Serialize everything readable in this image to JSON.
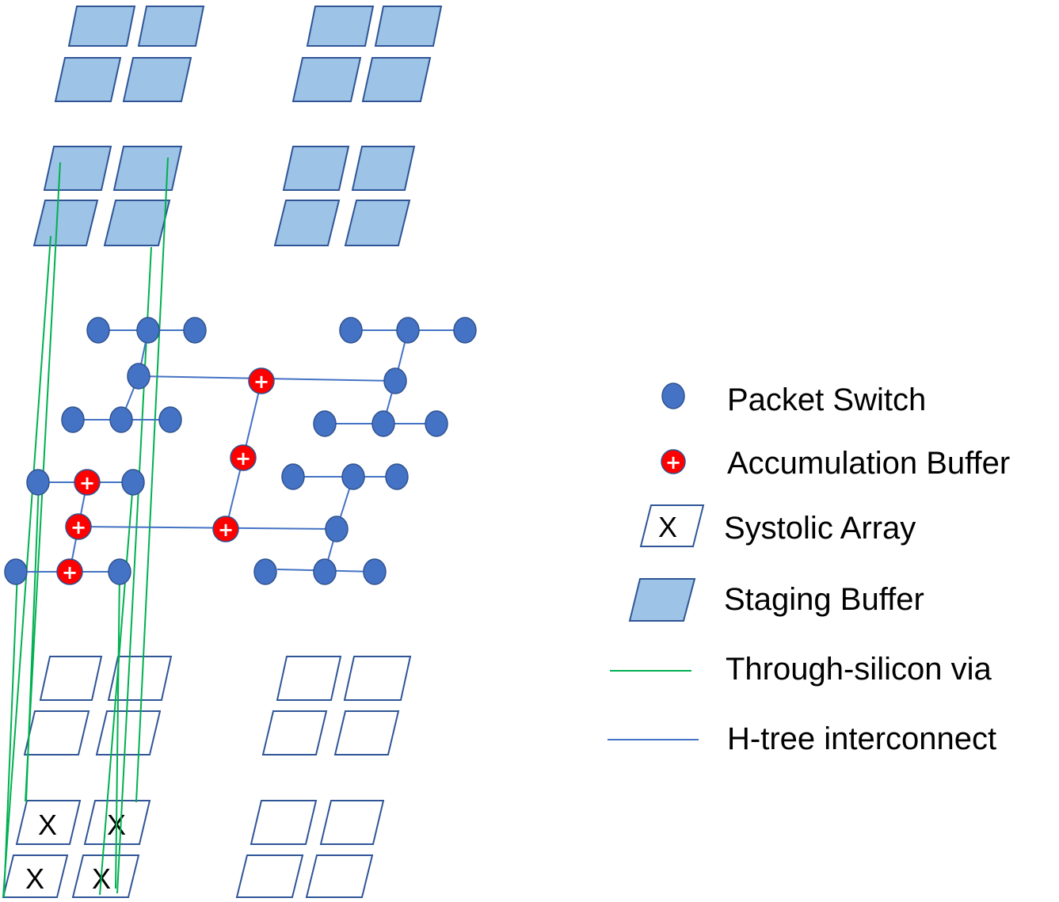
{
  "colors": {
    "staging_fill": "#9dc3e6",
    "tile_stroke": "#2f5597",
    "switch_fill": "#4472c4",
    "switch_stroke": "#2f528f",
    "accum_fill": "#ff0000",
    "tsv": "#00b050",
    "htree": "#4472c4"
  },
  "tile_symbols": {
    "systolic": "X",
    "accum": "+"
  },
  "legend": [
    {
      "id": "packet-switch",
      "icon": "circle-icon",
      "label": "Packet Switch"
    },
    {
      "id": "accumulation-buffer",
      "icon": "plus-circle-icon",
      "label": "Accumulation Buffer"
    },
    {
      "id": "systolic-array",
      "icon": "x-parallelogram-icon",
      "label": "Systolic Array",
      "symbol": "X"
    },
    {
      "id": "staging-buffer",
      "icon": "filled-parallelogram-icon",
      "label": "Staging Buffer"
    },
    {
      "id": "through-silicon-via",
      "icon": "green-line-icon",
      "label": "Through-silicon via"
    },
    {
      "id": "h-tree-interconnect",
      "icon": "blue-line-icon",
      "label": "H-tree interconnect"
    }
  ]
}
